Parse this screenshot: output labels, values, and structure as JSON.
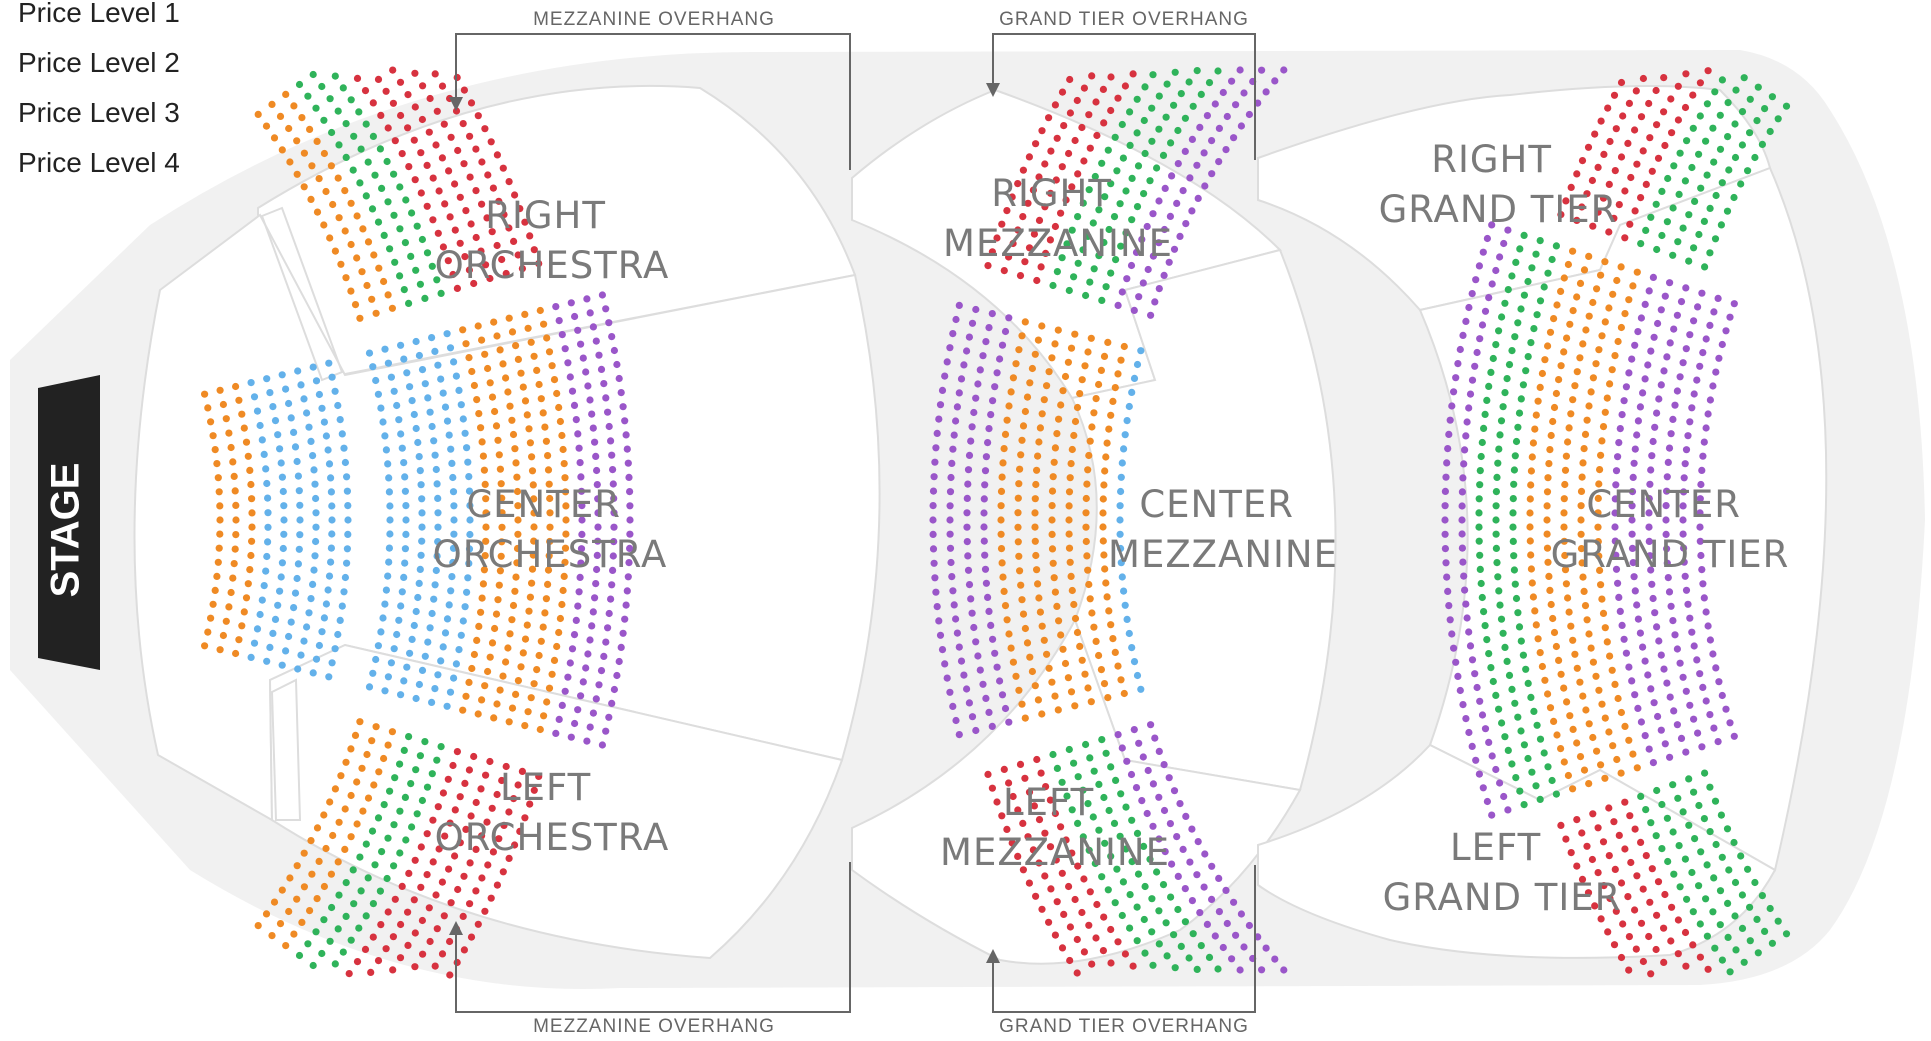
{
  "legend": {
    "items": [
      "Price Level 1",
      "Price Level 2",
      "Price Level 3",
      "Price Level 4"
    ]
  },
  "stage": {
    "label": "STAGE"
  },
  "sections": {
    "right_orchestra": [
      "RIGHT",
      "ORCHESTRA"
    ],
    "center_orchestra": [
      "CENTER",
      "ORCHESTRA"
    ],
    "left_orchestra": [
      "LEFT",
      "ORCHESTRA"
    ],
    "right_mezzanine": [
      "RIGHT",
      "MEZZANINE"
    ],
    "center_mezzanine": [
      "CENTER",
      "MEZZANINE"
    ],
    "left_mezzanine": [
      "LEFT",
      "MEZZANINE"
    ],
    "right_grand_tier": [
      "RIGHT",
      "GRAND TIER"
    ],
    "center_grand_tier": [
      "CENTER",
      "GRAND TIER"
    ],
    "left_grand_tier": [
      "LEFT",
      "GRAND TIER"
    ]
  },
  "overhangs": {
    "mezzanine_top": "MEZZANINE OVERHANG",
    "mezzanine_bottom": "MEZZANINE OVERHANG",
    "grand_tier_top": "GRAND TIER OVERHANG",
    "grand_tier_bottom": "GRAND TIER OVERHANG"
  },
  "colors": {
    "price_red": "#d7323f",
    "price_green": "#2fb35a",
    "price_orange": "#ef8a24",
    "price_purple": "#9a56c9",
    "price_blue": "#63b1ea",
    "venue_fill": "#f1f1f1",
    "section_fill": "#ffffff",
    "stage_fill": "#222222"
  }
}
